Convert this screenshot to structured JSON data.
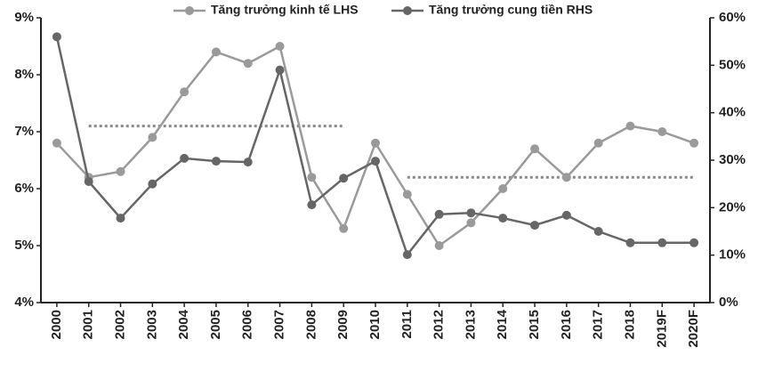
{
  "chart_data": {
    "type": "line",
    "categories": [
      "2000",
      "2001",
      "2002",
      "2003",
      "2004",
      "2005",
      "2006",
      "2007",
      "2008",
      "2009",
      "2010",
      "2011",
      "2012",
      "2013",
      "2014",
      "2015",
      "2016",
      "2017",
      "2018",
      "2019F",
      "2020F"
    ],
    "series": [
      {
        "name": "Tăng trưởng kinh tế LHS",
        "color": "#9a9a9a",
        "axis": "y",
        "values": [
          6.8,
          6.2,
          6.3,
          6.9,
          7.7,
          8.4,
          8.2,
          8.5,
          6.2,
          5.3,
          6.8,
          5.9,
          5.0,
          5.4,
          6.0,
          6.7,
          6.2,
          6.8,
          7.1,
          7.0,
          6.8
        ]
      },
      {
        "name": "Tăng trưởng cung tiền RHS",
        "color": "#666666",
        "axis": "y2",
        "values": [
          56,
          25.5,
          17.8,
          25,
          30.4,
          29.8,
          29.6,
          49,
          20.6,
          26.2,
          29.8,
          10.1,
          18.6,
          18.9,
          17.8,
          16.3,
          18.4,
          15,
          12.6,
          12.6,
          12.6
        ]
      }
    ],
    "reference_lines": [
      {
        "value": 7.1,
        "from": "2001",
        "to": "2009",
        "color": "#888888"
      },
      {
        "value": 6.2,
        "from": "2011",
        "to": "2020F",
        "color": "#888888"
      }
    ],
    "ylim": [
      4,
      9
    ],
    "yticks": [
      {
        "value": 4,
        "label": "4%"
      },
      {
        "value": 5,
        "label": "5%"
      },
      {
        "value": 6,
        "label": "6%"
      },
      {
        "value": 7,
        "label": "7%"
      },
      {
        "value": 8,
        "label": "8%"
      },
      {
        "value": 9,
        "label": "9%"
      }
    ],
    "y2lim": [
      0,
      60
    ],
    "y2ticks": [
      {
        "value": 0,
        "label": "0%"
      },
      {
        "value": 10,
        "label": "10%"
      },
      {
        "value": 20,
        "label": "20%"
      },
      {
        "value": 30,
        "label": "30%"
      },
      {
        "value": 40,
        "label": "40%"
      },
      {
        "value": 50,
        "label": "50%"
      },
      {
        "value": 60,
        "label": "60%"
      }
    ],
    "grid": false,
    "legend": "top"
  }
}
